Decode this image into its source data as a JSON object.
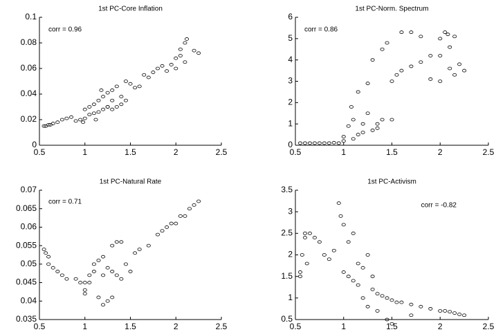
{
  "chart_data": [
    {
      "type": "scatter",
      "title": "1st PC-Core Inflation",
      "annotation": "corr = 0.96",
      "color": "#000000",
      "x": [
        0.55,
        0.57,
        0.6,
        0.62,
        0.65,
        0.7,
        0.75,
        0.8,
        0.85,
        0.9,
        0.95,
        1.0,
        1.0,
        1.05,
        1.05,
        1.1,
        1.1,
        1.15,
        1.15,
        1.2,
        1.2,
        1.25,
        1.25,
        1.3,
        1.3,
        1.35,
        1.35,
        1.4,
        1.4,
        1.45,
        1.5,
        1.55,
        1.6,
        1.65,
        1.7,
        1.75,
        1.8,
        1.85,
        1.9,
        1.95,
        2.0,
        2.0,
        2.05,
        2.05,
        2.1,
        2.12,
        2.1,
        2.2,
        2.25,
        1.12,
        1.3,
        0.98,
        1.45,
        1.25,
        1.18
      ],
      "values": [
        0.015,
        0.015,
        0.016,
        0.016,
        0.017,
        0.018,
        0.02,
        0.021,
        0.022,
        0.019,
        0.02,
        0.021,
        0.028,
        0.024,
        0.03,
        0.025,
        0.032,
        0.026,
        0.035,
        0.028,
        0.038,
        0.03,
        0.041,
        0.035,
        0.043,
        0.03,
        0.046,
        0.032,
        0.038,
        0.05,
        0.048,
        0.045,
        0.046,
        0.055,
        0.053,
        0.057,
        0.06,
        0.062,
        0.058,
        0.063,
        0.06,
        0.068,
        0.07,
        0.075,
        0.08,
        0.083,
        0.065,
        0.074,
        0.072,
        0.02,
        0.028,
        0.018,
        0.035,
        0.03,
        0.043
      ],
      "xlim": [
        0.5,
        2.5
      ],
      "xticks": [
        0.5,
        1,
        1.5,
        2,
        2.5
      ],
      "ylim": [
        0,
        0.1
      ],
      "yticks": [
        0,
        0.02,
        0.04,
        0.06,
        0.08,
        0.1
      ]
    },
    {
      "type": "scatter",
      "title": "1st PC-Norm. Spectrum",
      "annotation": "corr = 0.86",
      "color": "#000000",
      "x": [
        0.55,
        0.6,
        0.65,
        0.7,
        0.75,
        0.8,
        0.85,
        0.9,
        0.95,
        1.0,
        1.0,
        1.05,
        1.08,
        1.1,
        1.1,
        1.15,
        1.15,
        1.2,
        1.2,
        1.25,
        1.25,
        1.3,
        1.3,
        1.35,
        1.35,
        1.4,
        1.4,
        1.45,
        1.5,
        1.5,
        1.55,
        1.6,
        1.6,
        1.7,
        1.7,
        1.8,
        1.8,
        1.9,
        1.9,
        2.0,
        2.0,
        2.05,
        2.08,
        2.1,
        2.1,
        2.15,
        2.15,
        2.2,
        2.25,
        2.0
      ],
      "values": [
        0.1,
        0.1,
        0.1,
        0.1,
        0.1,
        0.1,
        0.1,
        0.12,
        0.1,
        0.2,
        0.4,
        0.9,
        1.8,
        1.2,
        0.3,
        0.5,
        2.5,
        0.6,
        1.0,
        1.5,
        2.9,
        0.7,
        4.0,
        0.8,
        1.0,
        1.2,
        4.5,
        4.8,
        3.0,
        1.2,
        3.3,
        3.5,
        5.3,
        5.3,
        3.7,
        3.9,
        5.1,
        3.1,
        4.2,
        3.0,
        4.2,
        5.3,
        5.2,
        4.6,
        3.6,
        5.1,
        3.3,
        3.8,
        3.5,
        5.0
      ],
      "xlim": [
        0.5,
        2.5
      ],
      "xticks": [
        0.5,
        1,
        1.5,
        2,
        2.5
      ],
      "ylim": [
        0,
        6
      ],
      "yticks": [
        0,
        1,
        2,
        3,
        4,
        5,
        6
      ]
    },
    {
      "type": "scatter",
      "title": "1st PC-Natural Rate",
      "annotation": "corr = 0.71",
      "color": "#000000",
      "x": [
        0.55,
        0.57,
        0.6,
        0.6,
        0.65,
        0.7,
        0.75,
        0.8,
        0.9,
        0.95,
        1.0,
        1.0,
        1.0,
        1.05,
        1.1,
        1.1,
        1.15,
        1.15,
        1.2,
        1.2,
        1.25,
        1.25,
        1.3,
        1.3,
        1.35,
        1.35,
        1.4,
        1.4,
        1.45,
        1.5,
        1.55,
        1.6,
        1.7,
        1.8,
        1.85,
        1.9,
        1.95,
        2.0,
        2.05,
        2.1,
        2.15,
        2.2,
        2.25,
        1.2,
        1.05,
        1.3
      ],
      "values": [
        0.054,
        0.053,
        0.052,
        0.05,
        0.049,
        0.048,
        0.047,
        0.046,
        0.046,
        0.045,
        0.045,
        0.043,
        0.042,
        0.047,
        0.05,
        0.048,
        0.051,
        0.041,
        0.039,
        0.047,
        0.049,
        0.04,
        0.041,
        0.055,
        0.056,
        0.047,
        0.056,
        0.046,
        0.05,
        0.048,
        0.053,
        0.054,
        0.055,
        0.058,
        0.059,
        0.06,
        0.061,
        0.061,
        0.063,
        0.063,
        0.065,
        0.066,
        0.067,
        0.052,
        0.045,
        0.048
      ],
      "xlim": [
        0.5,
        2.5
      ],
      "xticks": [
        0.5,
        1,
        1.5,
        2,
        2.5
      ],
      "ylim": [
        0.035,
        0.07
      ],
      "yticks": [
        0.035,
        0.04,
        0.045,
        0.05,
        0.055,
        0.06,
        0.065,
        0.07
      ]
    },
    {
      "type": "scatter",
      "title": "1st PC-Activism",
      "annotation": "corr = -0.82",
      "color": "#000000",
      "x": [
        0.55,
        0.55,
        0.57,
        0.6,
        0.6,
        0.62,
        0.65,
        0.7,
        0.75,
        0.8,
        0.85,
        0.9,
        0.95,
        0.97,
        1.0,
        1.0,
        1.05,
        1.05,
        1.1,
        1.1,
        1.15,
        1.15,
        1.2,
        1.2,
        1.25,
        1.25,
        1.3,
        1.3,
        1.35,
        1.4,
        1.45,
        1.5,
        1.5,
        1.55,
        1.6,
        1.7,
        1.7,
        1.8,
        1.9,
        2.0,
        2.05,
        2.1,
        2.15,
        2.2,
        2.25,
        1.35,
        1.45
      ],
      "values": [
        1.6,
        1.5,
        2.0,
        2.4,
        2.5,
        1.8,
        2.5,
        2.4,
        2.3,
        2.0,
        1.9,
        2.1,
        3.2,
        2.9,
        2.7,
        1.6,
        1.5,
        2.3,
        1.4,
        2.5,
        1.8,
        1.3,
        1.7,
        1.0,
        2.0,
        0.8,
        1.5,
        1.2,
        1.1,
        1.05,
        1.0,
        0.95,
        0.4,
        0.9,
        0.9,
        0.6,
        0.85,
        0.8,
        0.75,
        0.7,
        0.7,
        0.68,
        0.65,
        0.62,
        0.6,
        0.7,
        0.5
      ],
      "xlim": [
        0.5,
        2.5
      ],
      "xticks": [
        0.5,
        1,
        1.5,
        2,
        2.5
      ],
      "ylim": [
        0.5,
        3.5
      ],
      "yticks": [
        0.5,
        1,
        1.5,
        2,
        2.5,
        3,
        3.5
      ]
    }
  ]
}
